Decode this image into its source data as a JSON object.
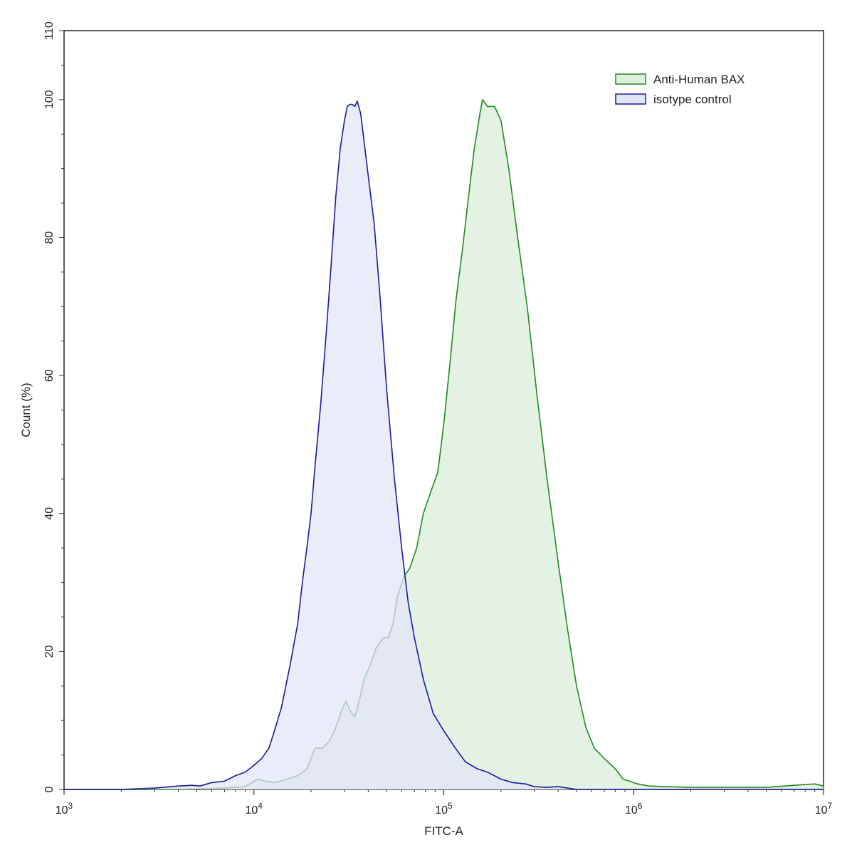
{
  "chart_data": {
    "type": "area",
    "xlabel": "FITC-A",
    "ylabel": "Count  (%)",
    "x_scale": "log",
    "xlim": [
      1000,
      10000000
    ],
    "ylim": [
      0,
      110
    ],
    "x_ticks": [
      {
        "value": 1000,
        "base": "10",
        "exp": "3"
      },
      {
        "value": 10000,
        "base": "10",
        "exp": "4"
      },
      {
        "value": 100000,
        "base": "10",
        "exp": "5"
      },
      {
        "value": 1000000,
        "base": "10",
        "exp": "6"
      },
      {
        "value": 10000000,
        "base": "10",
        "exp": "7"
      }
    ],
    "y_ticks": [
      "0",
      "20",
      "40",
      "60",
      "80",
      "100",
      "110"
    ],
    "legend_position": "top-right",
    "series": [
      {
        "name": "Anti-Human BAX",
        "stroke": "#1f8a1f",
        "fill": "#dff0df",
        "points": [
          [
            1000,
            0
          ],
          [
            2500,
            0
          ],
          [
            4000,
            0
          ],
          [
            7000,
            0.2
          ],
          [
            9000,
            0.4
          ],
          [
            10500,
            1.5
          ],
          [
            11500,
            1.2
          ],
          [
            13000,
            1.0
          ],
          [
            15000,
            1.5
          ],
          [
            17000,
            2.0
          ],
          [
            19000,
            3.0
          ],
          [
            20000,
            4.5
          ],
          [
            21000,
            6
          ],
          [
            23000,
            6
          ],
          [
            25000,
            7
          ],
          [
            27000,
            9
          ],
          [
            29000,
            11.5
          ],
          [
            30500,
            12.8
          ],
          [
            32000,
            11.5
          ],
          [
            34000,
            10.5
          ],
          [
            36000,
            13
          ],
          [
            38000,
            16
          ],
          [
            41000,
            18
          ],
          [
            44000,
            20.5
          ],
          [
            48000,
            22
          ],
          [
            51000,
            22
          ],
          [
            54000,
            24
          ],
          [
            57000,
            28
          ],
          [
            62000,
            31
          ],
          [
            66000,
            32
          ],
          [
            72000,
            35
          ],
          [
            78000,
            40
          ],
          [
            85000,
            43
          ],
          [
            93000,
            46
          ],
          [
            100000,
            53
          ],
          [
            108000,
            62
          ],
          [
            116000,
            71
          ],
          [
            125000,
            78
          ],
          [
            135000,
            86
          ],
          [
            145000,
            93
          ],
          [
            155000,
            98
          ],
          [
            160000,
            100
          ],
          [
            170000,
            99
          ],
          [
            185000,
            99
          ],
          [
            200000,
            97
          ],
          [
            220000,
            90
          ],
          [
            245000,
            80
          ],
          [
            275000,
            70
          ],
          [
            310000,
            57
          ],
          [
            350000,
            45
          ],
          [
            400000,
            33
          ],
          [
            450000,
            23
          ],
          [
            500000,
            15
          ],
          [
            560000,
            9
          ],
          [
            620000,
            6
          ],
          [
            700000,
            4.5
          ],
          [
            800000,
            3
          ],
          [
            880000,
            1.5
          ],
          [
            950000,
            1.2
          ],
          [
            1050000,
            0.8
          ],
          [
            1200000,
            0.5
          ],
          [
            1500000,
            0.4
          ],
          [
            2000000,
            0.3
          ],
          [
            3000000,
            0.3
          ],
          [
            5000000,
            0.3
          ],
          [
            7000000,
            0.6
          ],
          [
            9000000,
            0.8
          ],
          [
            10000000,
            0.5
          ]
        ]
      },
      {
        "name": "isotype control",
        "stroke": "#1a1aa0",
        "fill": "#e2e4f8",
        "points": [
          [
            1000,
            0
          ],
          [
            2000,
            0
          ],
          [
            3000,
            0.2
          ],
          [
            4000,
            0.5
          ],
          [
            4700,
            0.6
          ],
          [
            5200,
            0.5
          ],
          [
            6000,
            1.0
          ],
          [
            7000,
            1.2
          ],
          [
            8000,
            2.0
          ],
          [
            9000,
            2.5
          ],
          [
            10000,
            3.5
          ],
          [
            11000,
            4.5
          ],
          [
            12000,
            6
          ],
          [
            13000,
            9
          ],
          [
            14000,
            12
          ],
          [
            15500,
            18
          ],
          [
            17000,
            24
          ],
          [
            18000,
            30
          ],
          [
            19000,
            35
          ],
          [
            20000,
            40
          ],
          [
            21000,
            47
          ],
          [
            22500,
            56
          ],
          [
            24000,
            66
          ],
          [
            25500,
            76
          ],
          [
            27000,
            86
          ],
          [
            28500,
            93
          ],
          [
            30000,
            97
          ],
          [
            31000,
            99
          ],
          [
            32000,
            99.3
          ],
          [
            33000,
            99.3
          ],
          [
            34000,
            99
          ],
          [
            35000,
            99.8
          ],
          [
            36500,
            98
          ],
          [
            38000,
            94
          ],
          [
            40000,
            89
          ],
          [
            43000,
            82
          ],
          [
            46000,
            72
          ],
          [
            50000,
            58
          ],
          [
            55000,
            45
          ],
          [
            60000,
            35
          ],
          [
            65000,
            27
          ],
          [
            70000,
            22
          ],
          [
            78000,
            16
          ],
          [
            88000,
            11
          ],
          [
            100000,
            8.5
          ],
          [
            115000,
            6
          ],
          [
            130000,
            4
          ],
          [
            150000,
            3
          ],
          [
            170000,
            2.5
          ],
          [
            200000,
            1.5
          ],
          [
            230000,
            1.0
          ],
          [
            270000,
            0.8
          ],
          [
            300000,
            0.4
          ],
          [
            350000,
            0.3
          ],
          [
            400000,
            0.4
          ],
          [
            450000,
            0.2
          ],
          [
            500000,
            0
          ],
          [
            1000000,
            0
          ],
          [
            10000000,
            0
          ]
        ]
      }
    ]
  }
}
